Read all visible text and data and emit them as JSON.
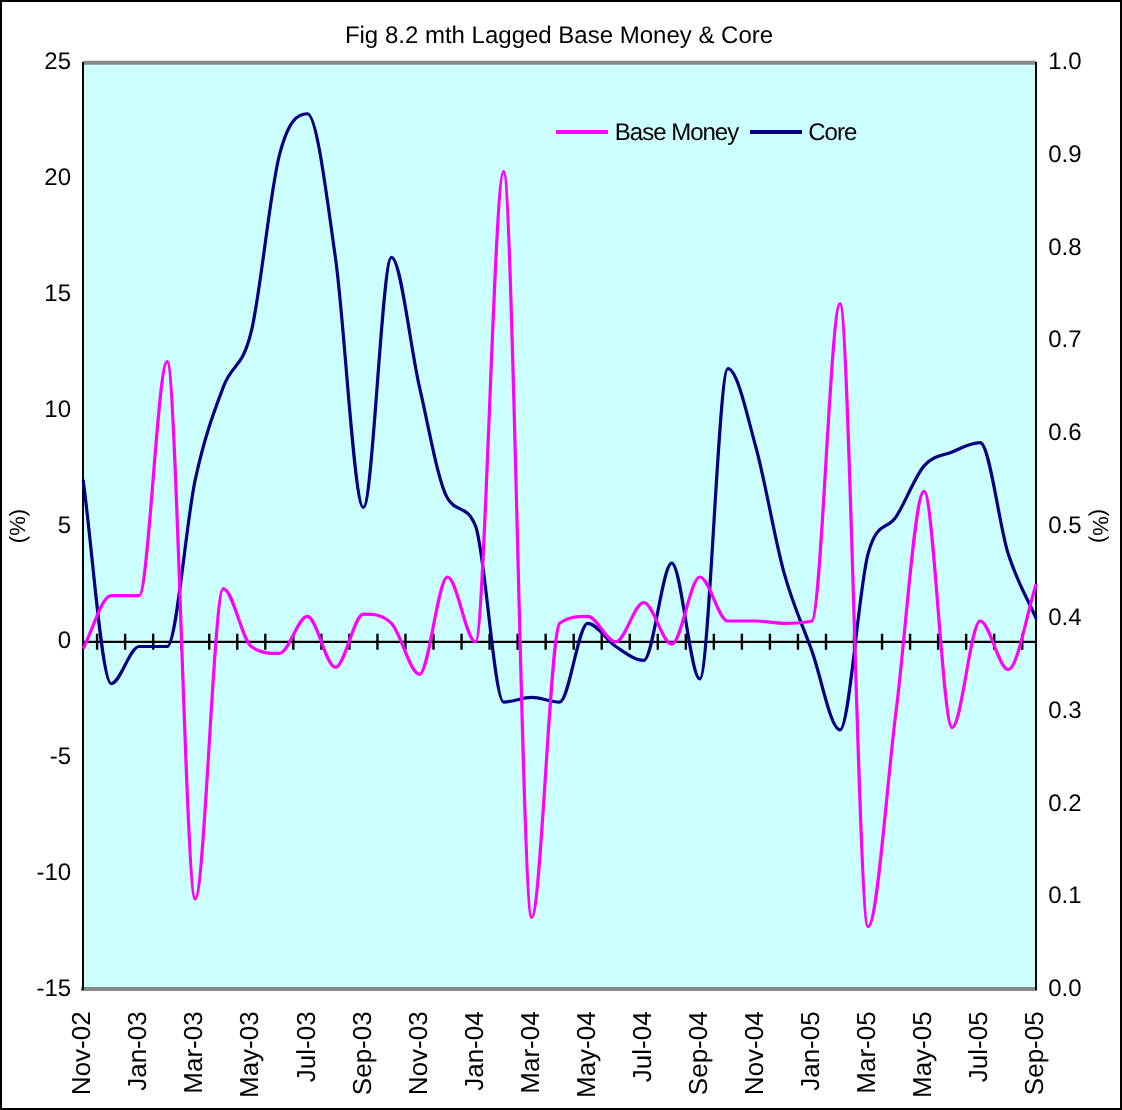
{
  "chart_data": {
    "type": "line",
    "title": "Fig 8.2 mth Lagged Base Money & Core",
    "ylabel": "(%)",
    "y2label": "(%)",
    "categories": [
      "Nov-02",
      null,
      "Jan-03",
      null,
      "Mar-03",
      null,
      "May-03",
      null,
      "Jul-03",
      null,
      "Sep-03",
      null,
      "Nov-03",
      null,
      "Jan-04",
      null,
      "Mar-04",
      null,
      "May-04",
      null,
      "Jul-04",
      null,
      "Sep-04",
      null,
      "Nov-04",
      null,
      "Jan-05",
      null,
      "Mar-05",
      null,
      "May-05",
      null,
      "Jul-05",
      null,
      "Sep-05"
    ],
    "series": [
      {
        "name": "Base Money",
        "color": "#ff00ff",
        "values": [
          -0.3,
          2.0,
          2.0,
          12.1,
          -11.1,
          2.3,
          -0.2,
          -0.5,
          1.1,
          -1.1,
          1.2,
          0.8,
          -1.4,
          2.8,
          0.0,
          20.3,
          -11.9,
          0.8,
          1.1,
          0.0,
          1.7,
          -0.1,
          2.8,
          0.9,
          0.9,
          0.8,
          0.9,
          14.6,
          -12.3,
          -3.0,
          6.5,
          -3.7,
          0.9,
          -1.2,
          2.5
        ]
      },
      {
        "name": "Core",
        "color": "#000080",
        "axis": "y2",
        "values": [
          0.55,
          0.33,
          0.37,
          0.37,
          0.55,
          0.65,
          0.71,
          0.9,
          0.945,
          0.79,
          0.52,
          0.79,
          0.65,
          0.53,
          0.5,
          0.31,
          0.315,
          0.31,
          0.395,
          0.37,
          0.355,
          0.46,
          0.335,
          0.67,
          0.585,
          0.45,
          0.365,
          0.28,
          0.47,
          0.51,
          0.565,
          0.58,
          0.59,
          0.47,
          0.4
        ]
      }
    ],
    "ylim": [
      -15,
      25
    ],
    "yticks": [
      -15,
      -10,
      -5,
      0,
      5,
      10,
      15,
      20,
      25
    ],
    "y2lim": [
      0,
      1
    ],
    "y2ticks": [
      {
        "value": 0,
        "label": "0.0"
      },
      {
        "value": 0.1,
        "label": "0.1"
      },
      {
        "value": 0.2,
        "label": "0.2"
      },
      {
        "value": 0.3,
        "label": "0.3"
      },
      {
        "value": 0.4,
        "label": "0.4"
      },
      {
        "value": 0.5,
        "label": "0.5"
      },
      {
        "value": 0.6,
        "label": "0.6"
      },
      {
        "value": 0.7,
        "label": "0.7"
      },
      {
        "value": 0.8,
        "label": "0.8"
      },
      {
        "value": 0.9,
        "label": "0.9"
      },
      {
        "value": 1,
        "label": "1.0"
      }
    ],
    "ref_lines": [
      {
        "axis": "y",
        "value": 0,
        "color": "#000000"
      }
    ],
    "grid": false,
    "legend": "top right",
    "marker": "none",
    "line_style": "solid"
  }
}
